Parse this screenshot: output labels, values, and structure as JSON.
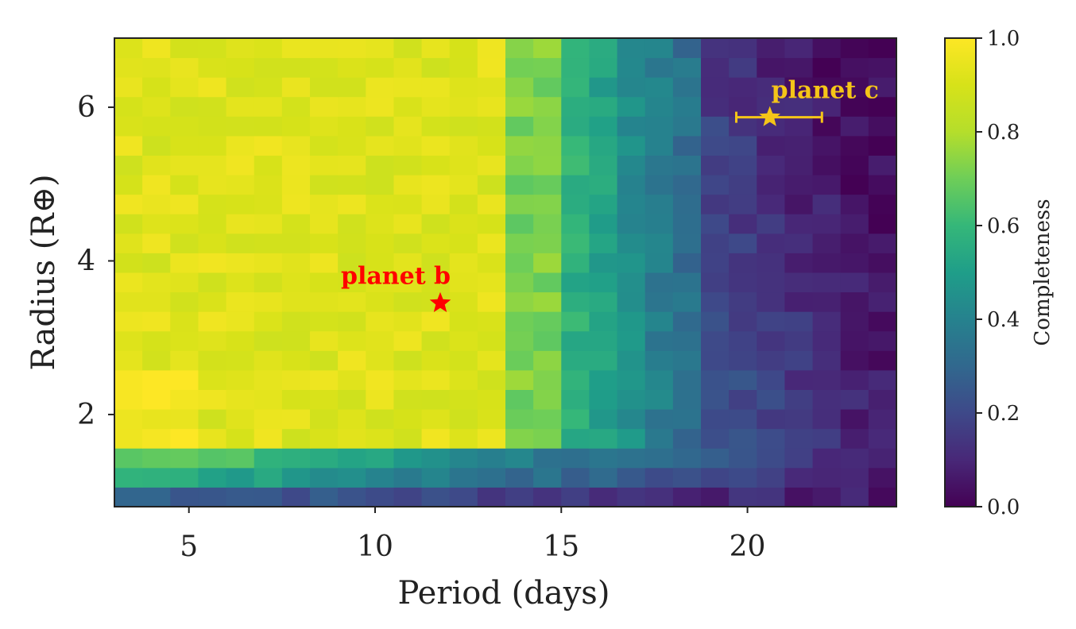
{
  "chart_data": {
    "type": "heatmap",
    "xlabel": "Period (days)",
    "ylabel": "Radius (R⊕)",
    "xlim": [
      3.0,
      24.0
    ],
    "ylim": [
      0.8,
      6.9
    ],
    "x_ticks": [
      5,
      10,
      15,
      20
    ],
    "y_ticks": [
      2,
      4,
      6
    ],
    "x_tick_labels": [
      "5",
      "10",
      "15",
      "20"
    ],
    "y_tick_labels": [
      "2",
      "4",
      "6"
    ],
    "colormap": "viridis",
    "colorbar": {
      "label": "Completeness",
      "range": [
        0.0,
        1.0
      ],
      "ticks": [
        0.0,
        0.2,
        0.4,
        0.6,
        0.8,
        1.0
      ],
      "tick_labels": [
        "0.0",
        "0.2",
        "0.4",
        "0.6",
        "0.8",
        "1.0"
      ]
    },
    "grid": false,
    "legend": "none",
    "grid_shape": {
      "period_bins": 28,
      "radius_bins": 24
    },
    "row_profiles": {
      "radius_bin_edges_description": "24 bins from 0.8 to 6.9",
      "completeness_by_region": [
        {
          "period_range": [
            3,
            13.5
          ],
          "radius_range": [
            1.5,
            6.9
          ],
          "completeness": 0.92
        },
        {
          "period_range": [
            13.5,
            15
          ],
          "radius_range": [
            1.5,
            6.9
          ],
          "completeness": 0.72
        },
        {
          "period_range": [
            15,
            19
          ],
          "radius_range": [
            1.5,
            6.9
          ],
          "completeness": 0.45
        },
        {
          "period_range": [
            19,
            24
          ],
          "radius_range": [
            1.5,
            6.9
          ],
          "completeness": 0.18
        },
        {
          "period_range": [
            3,
            24
          ],
          "radius_range": [
            1.05,
            1.3
          ],
          "completeness": 0.35
        },
        {
          "period_range": [
            3,
            24
          ],
          "radius_range": [
            0.8,
            1.05
          ],
          "completeness": 0.12
        }
      ]
    },
    "annotations": [
      {
        "label": "planet b",
        "x": 11.75,
        "y": 3.45,
        "color": "#ff0000",
        "marker": "star"
      },
      {
        "label": "planet c",
        "x": 20.6,
        "y": 5.87,
        "color": "#f5c518",
        "marker": "star",
        "xerr": [
          19.7,
          22.0
        ]
      }
    ]
  }
}
